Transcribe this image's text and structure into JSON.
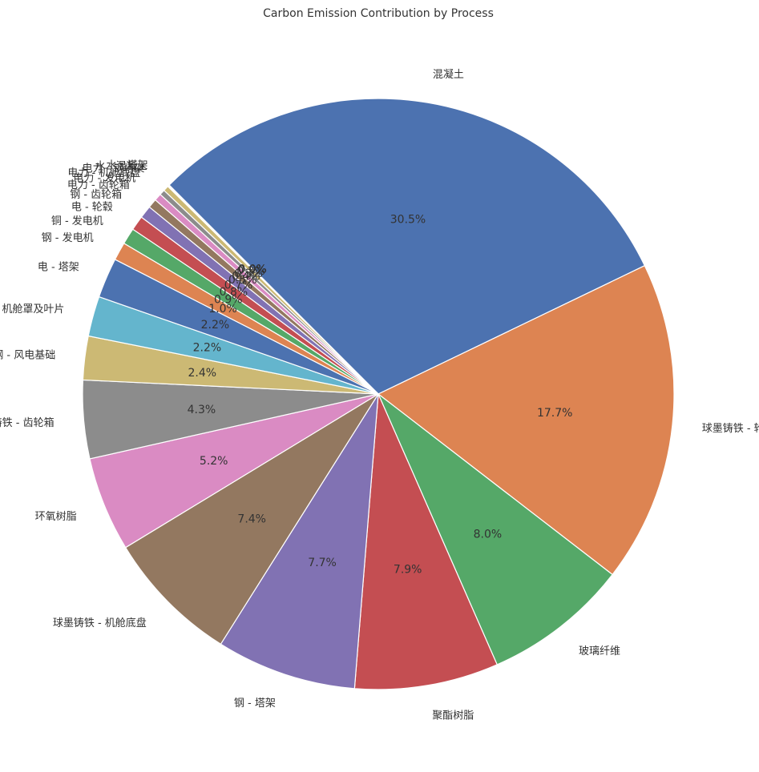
{
  "chart_data": {
    "type": "pie",
    "title": "Carbon Emission Contribution by Process",
    "start_angle_deg": 135,
    "direction": "clockwise",
    "slices": [
      {
        "label": "混凝土",
        "value": 30.5,
        "pct_label": "30.5%",
        "color": "#4c72b0"
      },
      {
        "label": "球墨铸铁 - 轮毂",
        "value": 17.7,
        "pct_label": "17.7%",
        "color": "#dd8452"
      },
      {
        "label": "玻璃纤维",
        "value": 8.0,
        "pct_label": "8.0%",
        "color": "#55a868"
      },
      {
        "label": "聚酯树脂",
        "value": 7.9,
        "pct_label": "7.9%",
        "color": "#c44e52"
      },
      {
        "label": "钢 - 塔架",
        "value": 7.7,
        "pct_label": "7.7%",
        "color": "#8172b3"
      },
      {
        "label": "球墨铸铁 - 机舱底盘",
        "value": 7.4,
        "pct_label": "7.4%",
        "color": "#937860"
      },
      {
        "label": "环氧树脂",
        "value": 5.2,
        "pct_label": "5.2%",
        "color": "#da8bc3"
      },
      {
        "label": "球墨铸铁 - 齿轮箱",
        "value": 4.3,
        "pct_label": "4.3%",
        "color": "#8c8c8c"
      },
      {
        "label": "钢 - 风电基础",
        "value": 2.4,
        "pct_label": "2.4%",
        "color": "#ccb974"
      },
      {
        "label": "电 - 机舱罩及叶片",
        "value": 2.2,
        "pct_label": "2.2%",
        "color": "#64b5cd"
      },
      {
        "label": "电 - 塔架",
        "value": 2.2,
        "pct_label": "2.2%",
        "color": "#4c72b0"
      },
      {
        "label": "钢 - 发电机",
        "value": 1.0,
        "pct_label": "1.0%",
        "color": "#dd8452"
      },
      {
        "label": "铜 - 发电机",
        "value": 0.9,
        "pct_label": "0.9%",
        "color": "#55a868"
      },
      {
        "label": "电 - 轮毂",
        "value": 0.8,
        "pct_label": "0.8%",
        "color": "#c44e52"
      },
      {
        "label": "钢 - 齿轮箱",
        "value": 0.7,
        "pct_label": "0.7%",
        "color": "#8172b3"
      },
      {
        "label": "电力 - 齿轮箱",
        "value": 0.5,
        "pct_label": "0.5%",
        "color": "#937860"
      },
      {
        "label": "电力 - 发电机",
        "value": 0.4,
        "pct_label": "0.4%",
        "color": "#da8bc3"
      },
      {
        "label": "电力 - 机舱底盘",
        "value": 0.3,
        "pct_label": "0.3%",
        "color": "#8c8c8c"
      },
      {
        "label": "电力 - 钢塔架",
        "value": 0.3,
        "pct_label": "0.3%",
        "color": "#ccb974"
      },
      {
        "label": "水 - 混凝土",
        "value": 0.05,
        "pct_label": "0.0%",
        "color": "#64b5cd"
      },
      {
        "label": "水 - 塔架",
        "value": 0.05,
        "pct_label": "0.0%",
        "color": "#4c72b0"
      }
    ]
  }
}
